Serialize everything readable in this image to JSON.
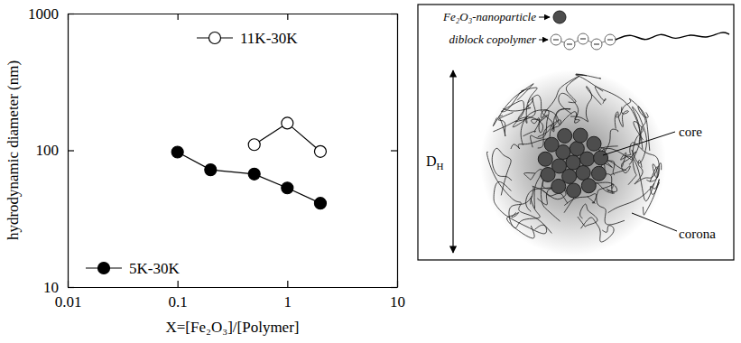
{
  "chart_data": {
    "type": "line",
    "xlabel": "X=[Fe₂O₃]/[Polymer]",
    "ylabel": "hydrodynamic diameter (nm)",
    "log": true,
    "xlim": [
      0.01,
      10
    ],
    "xticks": [
      0.01,
      0.1,
      1,
      10
    ],
    "ylim": [
      10,
      1000
    ],
    "yticks": [
      10,
      100,
      1000
    ],
    "series": [
      {
        "name": "5K-30K",
        "color": "#000000",
        "marker": "filled-circle",
        "line_style": "solid",
        "x": [
          0.1,
          0.2,
          0.5,
          1,
          2
        ],
        "values": [
          97,
          72,
          67,
          53,
          41
        ]
      },
      {
        "name": "11K-30K",
        "color": "#000000",
        "marker": "open-circle",
        "line_style": "solid",
        "x": [
          0.5,
          1,
          2
        ],
        "values": [
          110,
          158,
          98
        ]
      }
    ]
  },
  "diagram": {
    "nanoparticle_label": "Fe₂O₃-nanoparticle",
    "copolymer_label": "diblock copolymer",
    "core_label": "core",
    "corona_label": "corona",
    "diameter_label": {
      "symbol": "D",
      "subscript": "H"
    }
  }
}
